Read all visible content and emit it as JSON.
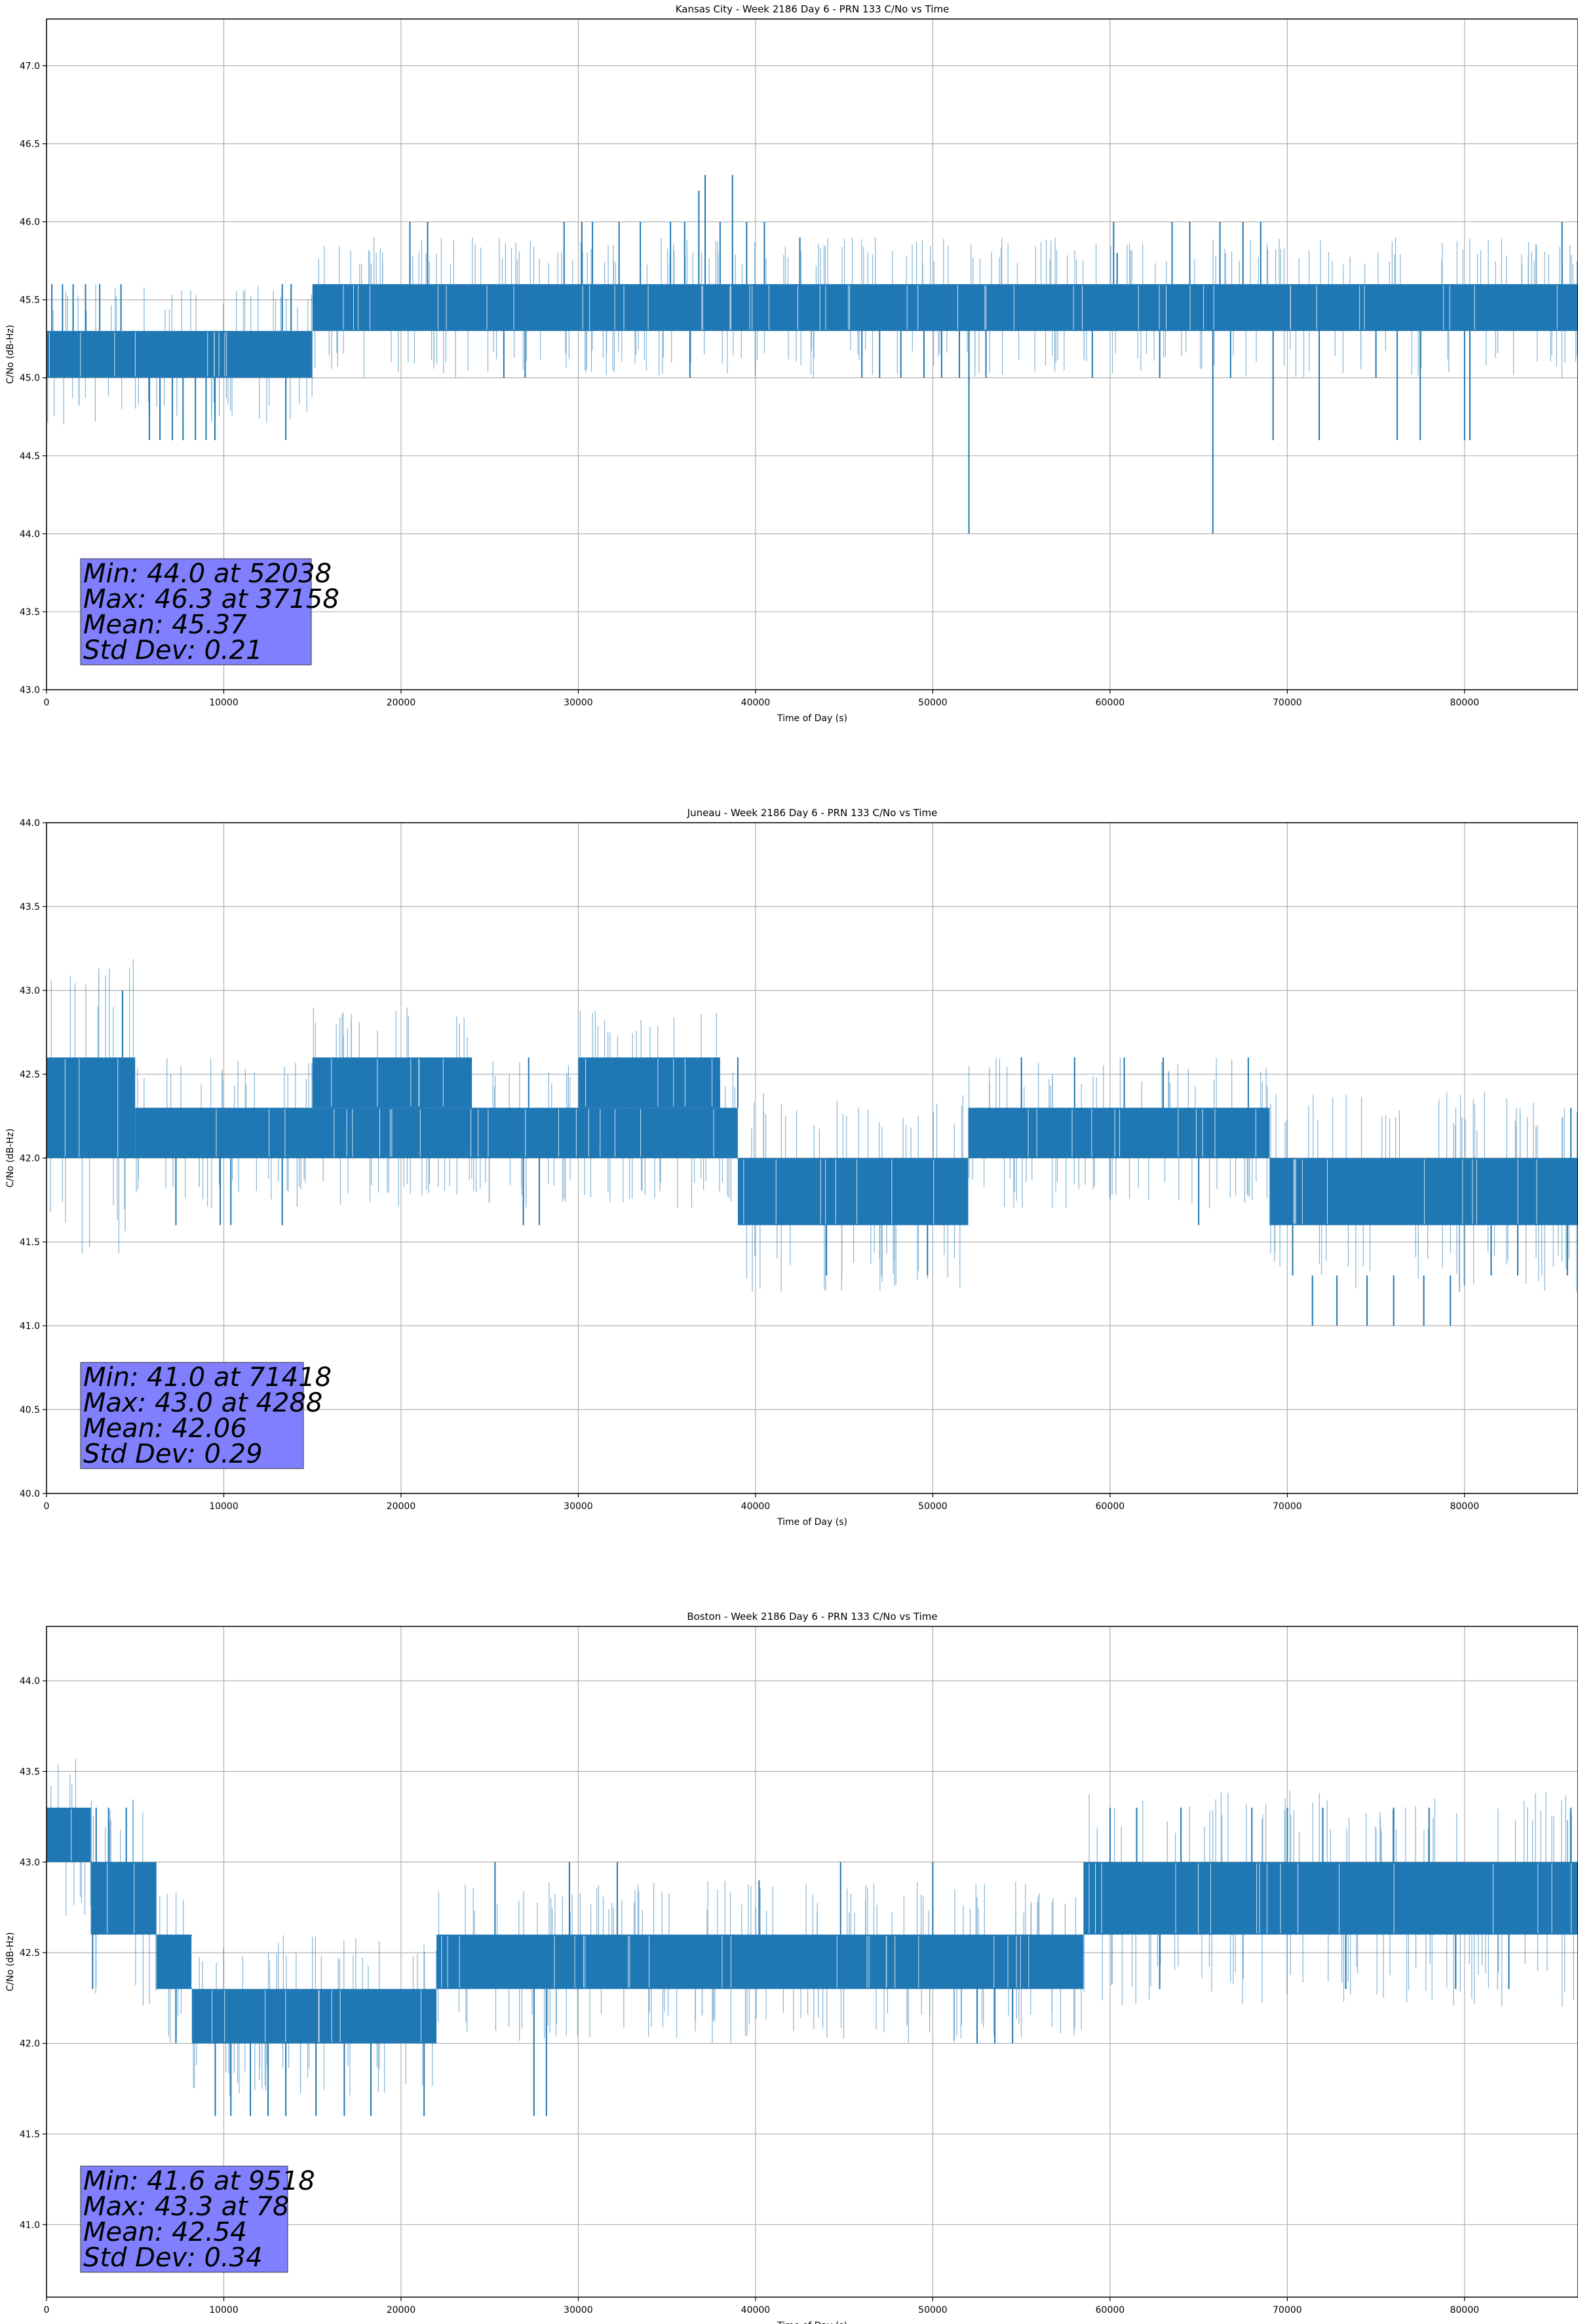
{
  "style": {
    "series_color": "#1f77b4",
    "grid_color": "#b0b0b0",
    "stats_box_color": "#8080ff"
  },
  "chart_data": [
    {
      "type": "line",
      "title": "Kansas City - Week 2186 Day 6 - PRN 133 C/No vs Time",
      "xlabel": "Time of Day (s)",
      "ylabel": "C/No (dB-Hz)",
      "xlim": [
        0,
        86400
      ],
      "ylim": [
        43.0,
        47.3
      ],
      "xticks": [
        0,
        10000,
        20000,
        30000,
        40000,
        50000,
        60000,
        70000,
        80000
      ],
      "yticks": [
        43.0,
        43.5,
        44.0,
        44.5,
        45.0,
        45.5,
        46.0,
        46.5,
        47.0
      ],
      "grid": true,
      "stats": [
        "Min: 44.0 at 52038",
        "Max: 46.3 at 37158",
        "Mean: 45.37",
        "Std Dev: 0.21"
      ],
      "series": [
        {
          "levels": [
            44.6,
            45.0,
            45.3,
            45.6,
            46.0
          ],
          "bands": [
            {
              "x_start": 0,
              "x_end": 15000,
              "low": 45.0,
              "high": 45.3
            },
            {
              "x_start": 15000,
              "x_end": 86400,
              "low": 45.3,
              "high": 45.6
            }
          ],
          "spikes": [
            {
              "x": 300,
              "from": 45.3,
              "to": 45.6
            },
            {
              "x": 900,
              "from": 45.3,
              "to": 45.6
            },
            {
              "x": 1500,
              "from": 45.3,
              "to": 45.6
            },
            {
              "x": 2200,
              "from": 45.3,
              "to": 45.6
            },
            {
              "x": 3000,
              "from": 45.3,
              "to": 45.6
            },
            {
              "x": 4200,
              "from": 45.3,
              "to": 45.6
            },
            {
              "x": 5800,
              "from": 45.0,
              "to": 44.6
            },
            {
              "x": 6400,
              "from": 45.0,
              "to": 44.6
            },
            {
              "x": 7100,
              "from": 45.0,
              "to": 44.6
            },
            {
              "x": 7700,
              "from": 45.0,
              "to": 44.6
            },
            {
              "x": 8400,
              "from": 45.0,
              "to": 44.6
            },
            {
              "x": 9000,
              "from": 45.0,
              "to": 44.6
            },
            {
              "x": 9500,
              "from": 45.0,
              "to": 44.6
            },
            {
              "x": 13500,
              "from": 45.0,
              "to": 44.6
            },
            {
              "x": 13300,
              "from": 45.3,
              "to": 45.6
            },
            {
              "x": 13800,
              "from": 45.3,
              "to": 45.6
            },
            {
              "x": 16000,
              "from": 45.6,
              "to": 45.3
            },
            {
              "x": 20500,
              "from": 45.6,
              "to": 46.0
            },
            {
              "x": 21500,
              "from": 45.6,
              "to": 46.0
            },
            {
              "x": 25800,
              "from": 45.3,
              "to": 45.0
            },
            {
              "x": 27000,
              "from": 45.3,
              "to": 45.0
            },
            {
              "x": 29200,
              "from": 45.6,
              "to": 46.0
            },
            {
              "x": 30200,
              "from": 45.6,
              "to": 46.0
            },
            {
              "x": 30800,
              "from": 45.6,
              "to": 46.0
            },
            {
              "x": 32300,
              "from": 45.6,
              "to": 46.0
            },
            {
              "x": 33500,
              "from": 45.6,
              "to": 46.0
            },
            {
              "x": 35200,
              "from": 45.6,
              "to": 46.0
            },
            {
              "x": 36000,
              "from": 45.6,
              "to": 46.0
            },
            {
              "x": 36300,
              "from": 45.3,
              "to": 45.0
            },
            {
              "x": 36800,
              "from": 45.6,
              "to": 46.2
            },
            {
              "x": 37158,
              "from": 45.6,
              "to": 46.3
            },
            {
              "x": 38000,
              "from": 45.6,
              "to": 46.0
            },
            {
              "x": 38700,
              "from": 45.6,
              "to": 46.3
            },
            {
              "x": 39500,
              "from": 45.6,
              "to": 46.0
            },
            {
              "x": 40500,
              "from": 45.6,
              "to": 46.0
            },
            {
              "x": 42500,
              "from": 45.6,
              "to": 45.9
            },
            {
              "x": 46000,
              "from": 45.3,
              "to": 45.0
            },
            {
              "x": 47000,
              "from": 45.3,
              "to": 45.0
            },
            {
              "x": 48200,
              "from": 45.3,
              "to": 45.0
            },
            {
              "x": 49500,
              "from": 45.3,
              "to": 45.0
            },
            {
              "x": 50500,
              "from": 45.3,
              "to": 45.0
            },
            {
              "x": 51500,
              "from": 45.3,
              "to": 45.0
            },
            {
              "x": 52038,
              "from": 45.3,
              "to": 44.0
            },
            {
              "x": 53000,
              "from": 45.3,
              "to": 45.0
            },
            {
              "x": 59000,
              "from": 45.3,
              "to": 45.0
            },
            {
              "x": 60200,
              "from": 45.6,
              "to": 46.0
            },
            {
              "x": 60400,
              "from": 45.6,
              "to": 45.8
            },
            {
              "x": 62800,
              "from": 45.3,
              "to": 45.0
            },
            {
              "x": 63500,
              "from": 45.6,
              "to": 46.0
            },
            {
              "x": 64500,
              "from": 45.6,
              "to": 46.0
            },
            {
              "x": 65800,
              "from": 45.3,
              "to": 44.0
            },
            {
              "x": 66200,
              "from": 45.6,
              "to": 46.0
            },
            {
              "x": 66800,
              "from": 45.3,
              "to": 45.0
            },
            {
              "x": 67500,
              "from": 45.6,
              "to": 46.0
            },
            {
              "x": 68500,
              "from": 45.6,
              "to": 46.0
            },
            {
              "x": 69200,
              "from": 45.3,
              "to": 44.6
            },
            {
              "x": 71800,
              "from": 45.3,
              "to": 44.6
            },
            {
              "x": 75000,
              "from": 45.3,
              "to": 45.0
            },
            {
              "x": 76200,
              "from": 45.3,
              "to": 44.6
            },
            {
              "x": 77500,
              "from": 45.3,
              "to": 44.6
            },
            {
              "x": 80000,
              "from": 45.3,
              "to": 44.6
            },
            {
              "x": 80300,
              "from": 45.3,
              "to": 44.6
            },
            {
              "x": 85500,
              "from": 45.6,
              "to": 46.0
            }
          ]
        }
      ]
    },
    {
      "type": "line",
      "title": "Juneau - Week 2186 Day 6 - PRN 133 C/No vs Time",
      "xlabel": "Time of Day (s)",
      "ylabel": "C/No (dB-Hz)",
      "xlim": [
        0,
        86400
      ],
      "ylim": [
        40.0,
        44.0
      ],
      "xticks": [
        0,
        10000,
        20000,
        30000,
        40000,
        50000,
        60000,
        70000,
        80000
      ],
      "yticks": [
        40.0,
        40.5,
        41.0,
        41.5,
        42.0,
        42.5,
        43.0,
        43.5,
        44.0
      ],
      "grid": true,
      "stats": [
        "Min: 41.0 at 71418",
        "Max: 43.0 at 4288",
        "Mean: 42.06",
        "Std Dev: 0.29"
      ],
      "series": [
        {
          "levels": [
            41.0,
            41.3,
            41.6,
            42.0,
            42.3,
            42.6,
            43.0
          ],
          "bands": [
            {
              "x_start": 0,
              "x_end": 5000,
              "low": 42.0,
              "high": 42.6
            },
            {
              "x_start": 5000,
              "x_end": 39000,
              "low": 42.0,
              "high": 42.3
            },
            {
              "x_start": 15000,
              "x_end": 24000,
              "low": 42.3,
              "high": 42.6
            },
            {
              "x_start": 30000,
              "x_end": 38000,
              "low": 42.3,
              "high": 42.6
            },
            {
              "x_start": 39000,
              "x_end": 52000,
              "low": 41.6,
              "high": 42.0
            },
            {
              "x_start": 52000,
              "x_end": 69000,
              "low": 42.0,
              "high": 42.3
            },
            {
              "x_start": 69000,
              "x_end": 86400,
              "low": 41.6,
              "high": 42.0
            }
          ],
          "spikes": [
            {
              "x": 4288,
              "from": 42.6,
              "to": 43.0
            },
            {
              "x": 7300,
              "from": 42.0,
              "to": 41.6
            },
            {
              "x": 9800,
              "from": 42.0,
              "to": 41.6
            },
            {
              "x": 10400,
              "from": 42.0,
              "to": 41.6
            },
            {
              "x": 13300,
              "from": 42.0,
              "to": 41.6
            },
            {
              "x": 26900,
              "from": 42.0,
              "to": 41.6
            },
            {
              "x": 27800,
              "from": 42.0,
              "to": 41.6
            },
            {
              "x": 27200,
              "from": 42.3,
              "to": 42.6
            },
            {
              "x": 39000,
              "from": 42.3,
              "to": 42.6
            },
            {
              "x": 44000,
              "from": 41.6,
              "to": 41.3
            },
            {
              "x": 49700,
              "from": 41.6,
              "to": 41.3
            },
            {
              "x": 55000,
              "from": 42.3,
              "to": 42.6
            },
            {
              "x": 58000,
              "from": 42.3,
              "to": 42.6
            },
            {
              "x": 60800,
              "from": 42.3,
              "to": 42.6
            },
            {
              "x": 63000,
              "from": 42.3,
              "to": 42.6
            },
            {
              "x": 65000,
              "from": 42.0,
              "to": 41.6
            },
            {
              "x": 67800,
              "from": 42.3,
              "to": 42.6
            },
            {
              "x": 70300,
              "from": 41.6,
              "to": 41.3
            },
            {
              "x": 71418,
              "from": 41.3,
              "to": 41.0
            },
            {
              "x": 72800,
              "from": 41.3,
              "to": 41.0
            },
            {
              "x": 74500,
              "from": 41.3,
              "to": 41.0
            },
            {
              "x": 76000,
              "from": 41.3,
              "to": 41.0
            },
            {
              "x": 77700,
              "from": 41.3,
              "to": 41.0
            },
            {
              "x": 79200,
              "from": 41.3,
              "to": 41.0
            },
            {
              "x": 81500,
              "from": 41.6,
              "to": 41.3
            },
            {
              "x": 83000,
              "from": 41.6,
              "to": 41.3
            },
            {
              "x": 85800,
              "from": 41.6,
              "to": 41.3
            },
            {
              "x": 86000,
              "from": 42.0,
              "to": 42.3
            }
          ]
        }
      ]
    },
    {
      "type": "line",
      "title": "Boston - Week 2186 Day 6 - PRN 133 C/No vs Time",
      "xlabel": "Time of Day (s)",
      "ylabel": "C/No (dB-Hz)",
      "xlim": [
        0,
        86400
      ],
      "ylim": [
        40.6,
        44.3
      ],
      "xticks": [
        0,
        10000,
        20000,
        30000,
        40000,
        50000,
        60000,
        70000,
        80000
      ],
      "yticks": [
        41.0,
        41.5,
        42.0,
        42.5,
        43.0,
        43.5,
        44.0
      ],
      "grid": true,
      "stats": [
        "Min: 41.6 at 9518",
        "Max: 43.3 at 78",
        "Mean: 42.54",
        "Std Dev: 0.34"
      ],
      "series": [
        {
          "levels": [
            41.6,
            42.0,
            42.3,
            42.6,
            43.0,
            43.3
          ],
          "bands": [
            {
              "x_start": 0,
              "x_end": 2500,
              "low": 43.0,
              "high": 43.3
            },
            {
              "x_start": 2500,
              "x_end": 6200,
              "low": 42.6,
              "high": 43.0
            },
            {
              "x_start": 6200,
              "x_end": 8200,
              "low": 42.3,
              "high": 42.6
            },
            {
              "x_start": 8200,
              "x_end": 22000,
              "low": 42.0,
              "high": 42.3
            },
            {
              "x_start": 22000,
              "x_end": 58500,
              "low": 42.3,
              "high": 42.6
            },
            {
              "x_start": 58500,
              "x_end": 86400,
              "low": 42.6,
              "high": 43.0
            }
          ],
          "spikes": [
            {
              "x": 78,
              "from": 43.0,
              "to": 43.3
            },
            {
              "x": 600,
              "from": 43.0,
              "to": 43.3
            },
            {
              "x": 1500,
              "from": 43.0,
              "to": 43.3
            },
            {
              "x": 2800,
              "from": 43.0,
              "to": 43.3
            },
            {
              "x": 3500,
              "from": 43.0,
              "to": 43.3
            },
            {
              "x": 4500,
              "from": 43.0,
              "to": 43.3
            },
            {
              "x": 2600,
              "from": 42.6,
              "to": 42.3
            },
            {
              "x": 7300,
              "from": 42.3,
              "to": 42.0
            },
            {
              "x": 9518,
              "from": 42.0,
              "to": 41.6
            },
            {
              "x": 10400,
              "from": 42.0,
              "to": 41.6
            },
            {
              "x": 11500,
              "from": 42.0,
              "to": 41.6
            },
            {
              "x": 12500,
              "from": 42.0,
              "to": 41.6
            },
            {
              "x": 13500,
              "from": 42.0,
              "to": 41.6
            },
            {
              "x": 15200,
              "from": 42.0,
              "to": 41.6
            },
            {
              "x": 16800,
              "from": 42.0,
              "to": 41.6
            },
            {
              "x": 18300,
              "from": 42.0,
              "to": 41.6
            },
            {
              "x": 21300,
              "from": 42.3,
              "to": 41.6
            },
            {
              "x": 25300,
              "from": 42.6,
              "to": 43.0
            },
            {
              "x": 27500,
              "from": 42.3,
              "to": 41.6
            },
            {
              "x": 28200,
              "from": 42.3,
              "to": 41.6
            },
            {
              "x": 29500,
              "from": 42.6,
              "to": 43.0
            },
            {
              "x": 32200,
              "from": 42.6,
              "to": 43.0
            },
            {
              "x": 40200,
              "from": 42.6,
              "to": 42.9
            },
            {
              "x": 44800,
              "from": 42.6,
              "to": 43.0
            },
            {
              "x": 50000,
              "from": 42.6,
              "to": 43.0
            },
            {
              "x": 52500,
              "from": 42.3,
              "to": 42.0
            },
            {
              "x": 53500,
              "from": 42.3,
              "to": 42.0
            },
            {
              "x": 54500,
              "from": 42.3,
              "to": 42.0
            },
            {
              "x": 60000,
              "from": 43.0,
              "to": 43.3
            },
            {
              "x": 61500,
              "from": 43.0,
              "to": 43.3
            },
            {
              "x": 62800,
              "from": 42.6,
              "to": 42.3
            },
            {
              "x": 64000,
              "from": 43.0,
              "to": 43.3
            },
            {
              "x": 68000,
              "from": 43.0,
              "to": 43.3
            },
            {
              "x": 70000,
              "from": 43.0,
              "to": 43.3
            },
            {
              "x": 72000,
              "from": 43.0,
              "to": 43.3
            },
            {
              "x": 73300,
              "from": 42.6,
              "to": 42.3
            },
            {
              "x": 76000,
              "from": 43.0,
              "to": 43.3
            },
            {
              "x": 78000,
              "from": 43.0,
              "to": 43.3
            },
            {
              "x": 79500,
              "from": 42.6,
              "to": 42.3
            },
            {
              "x": 82500,
              "from": 42.6,
              "to": 42.3
            },
            {
              "x": 86000,
              "from": 43.0,
              "to": 43.3
            }
          ]
        }
      ]
    }
  ]
}
